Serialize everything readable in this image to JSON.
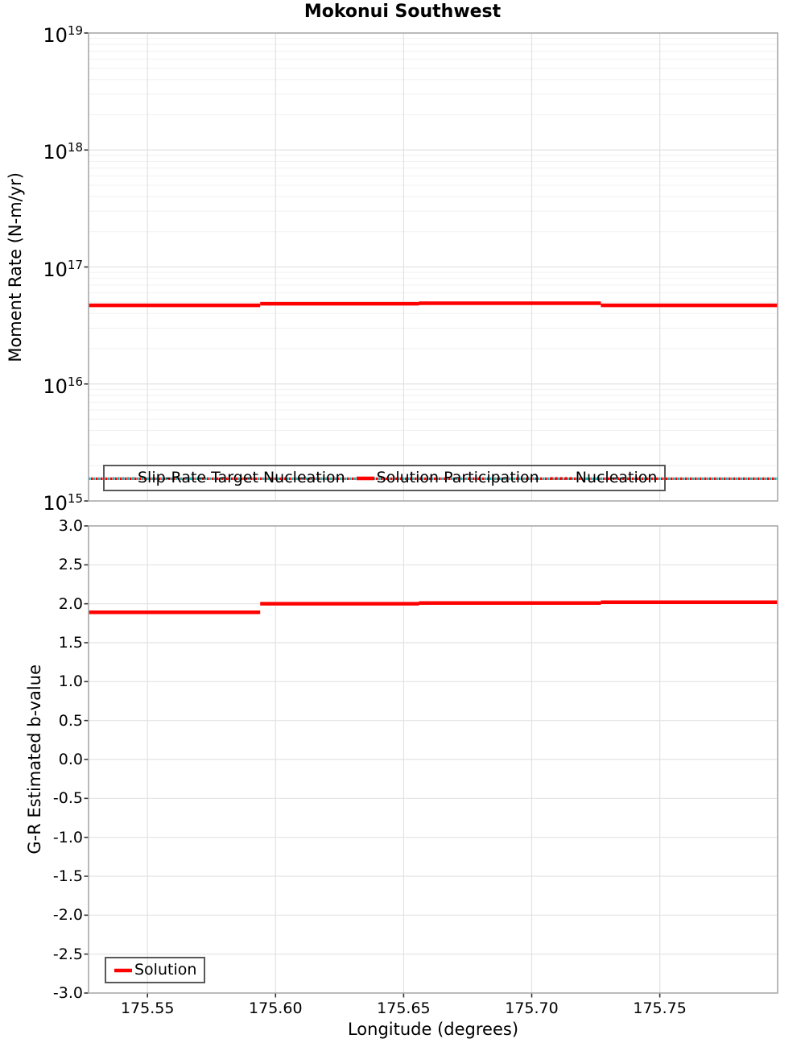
{
  "title": "Mokonui Southwest",
  "colors": {
    "series_red": "#ff0000",
    "series_teal": "#1db4b4",
    "grid_major": "#e2e2e2",
    "grid_minor": "#f1f1f1",
    "frame": "#aaaaaa",
    "tick": "#333333",
    "legend_border": "#595959",
    "text": "#000000",
    "background": "#ffffff"
  },
  "chart_data": [
    {
      "type": "line",
      "name": "moment-rate-vs-longitude",
      "title": "Mokonui Southwest",
      "ylabel": "Moment Rate (N-m/yr)",
      "yscale": "log",
      "ylim": [
        1000000000000000.0,
        1e+19
      ],
      "ytick_decades": [
        15,
        16,
        17,
        18,
        19
      ],
      "xlim": [
        175.527,
        175.796
      ],
      "xticks": [
        175.55,
        175.6,
        175.65,
        175.7,
        175.75
      ],
      "grid": true,
      "step_breaks_x": [
        175.594,
        175.656,
        175.727
      ],
      "series": [
        {
          "name": "Slip-Rate Target Nucleation",
          "style": "dotted",
          "color_key": "series_teal",
          "constant_value": 1550000000000000.0
        },
        {
          "name": "Solution Participation",
          "style": "solid",
          "color_key": "series_red",
          "segment_values": [
            4.7e+16,
            4.85e+16,
            4.9e+16,
            4.7e+16
          ]
        },
        {
          "name": "Nucleation",
          "style": "dotted",
          "color_key": "series_red",
          "constant_value": 1550000000000000.0
        }
      ],
      "legend_position": "lower center"
    },
    {
      "type": "line",
      "name": "gr-bvalue-vs-longitude",
      "ylabel": "G-R Estimated b-value",
      "xlabel": "Longitude (degrees)",
      "yscale": "linear",
      "ylim": [
        -3.0,
        3.0
      ],
      "ytick_step": 0.5,
      "xlim": [
        175.527,
        175.796
      ],
      "xticks": [
        175.55,
        175.6,
        175.65,
        175.7,
        175.75
      ],
      "grid": true,
      "step_breaks_x": [
        175.594,
        175.656,
        175.727
      ],
      "series": [
        {
          "name": "Solution",
          "style": "solid",
          "color_key": "series_red",
          "segment_values": [
            1.89,
            2.0,
            2.01,
            2.02
          ]
        }
      ],
      "legend_position": "lower left"
    }
  ]
}
